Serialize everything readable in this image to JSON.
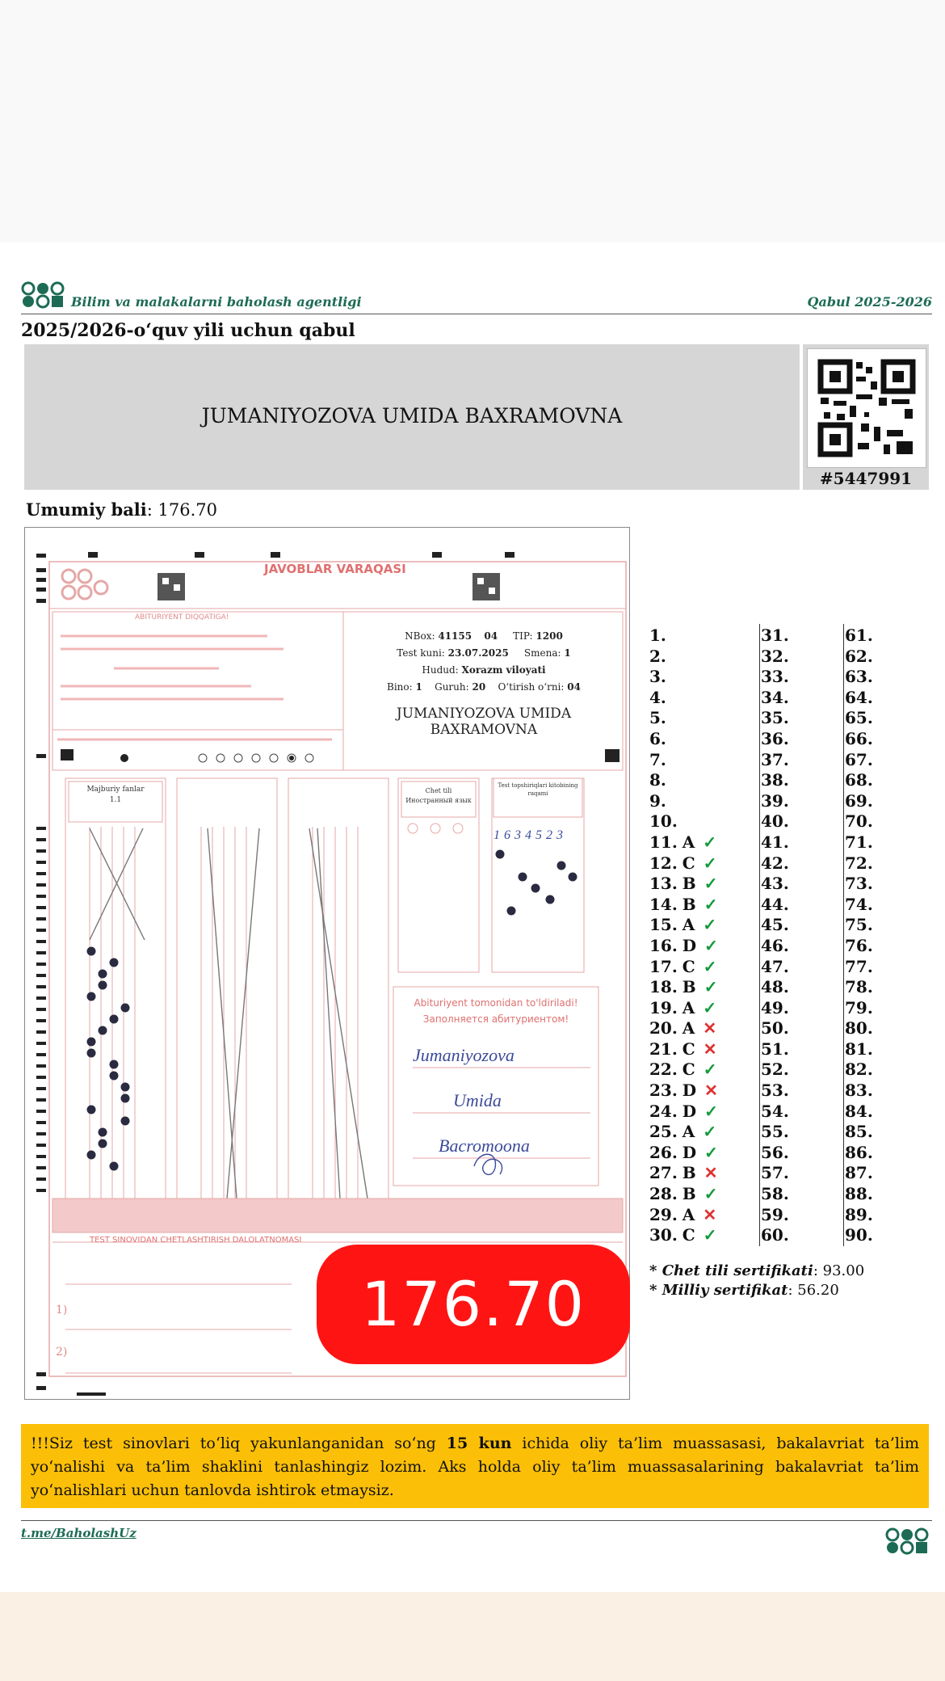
{
  "header": {
    "agency": "Bilim va malakalarni baholash agentligi",
    "campaign": "Qabul 2025-2026",
    "admission_year": "2025/2026-o‘quv yili uchun qabul"
  },
  "candidate": {
    "full_name": "JUMANIYOZOVA UMIDA BAXRAMOVNA",
    "id": "#5447991",
    "total_label": "Umumiy bali",
    "total": ": 176.70"
  },
  "sheet": {
    "title": "JAVOBLAR VARAQASI",
    "nbox_label": "NBox:",
    "nbox": "41155",
    "nbox_sub": "04",
    "tip_label": "TIP:",
    "tip": "1200",
    "test_day_label": "Test kuni:",
    "test_day": "23.07.2025",
    "shift_label": "Smena:",
    "shift": "1",
    "region_label": "Hudud:",
    "region": "Xorazm viloyati",
    "building_label": "Bino:",
    "building": "1",
    "group_label": "Guruh:",
    "group": "20",
    "seat_label": "O‘tirish o‘rni:",
    "seat": "04",
    "name_line1": "JUMANIYOZOVA UMIDA",
    "name_line2": "BAXRAMOVNA",
    "subject_label": "Majburiy fanlar",
    "subject_sub": "1.1",
    "foreign_label": "Chet tili",
    "foreign_sub": "Иностранный язык",
    "booklet_label": "Test topshiriqlari kitobining raqami",
    "booklet_digits": "1634523",
    "fill_title": "Abituriyent tomonidan to'ldiriladi!",
    "fill_title_ru": "Заполняется абитуриентом!",
    "sig_surname": "Jumaniyozova",
    "sig_name": "Umida",
    "sig_patronymic": "Bacromoona",
    "removal_title": "TEST SINOVIDAN CHETLASHTIRISH DALOLATNOMASI",
    "attention": "ABITURIYENT DIQQATIGA!"
  },
  "score_badge": "176.70",
  "answers": {
    "col1": [
      {
        "n": "1.",
        "a": "",
        "m": ""
      },
      {
        "n": "2.",
        "a": "",
        "m": ""
      },
      {
        "n": "3.",
        "a": "",
        "m": ""
      },
      {
        "n": "4.",
        "a": "",
        "m": ""
      },
      {
        "n": "5.",
        "a": "",
        "m": ""
      },
      {
        "n": "6.",
        "a": "",
        "m": ""
      },
      {
        "n": "7.",
        "a": "",
        "m": ""
      },
      {
        "n": "8.",
        "a": "",
        "m": ""
      },
      {
        "n": "9.",
        "a": "",
        "m": ""
      },
      {
        "n": "10.",
        "a": "",
        "m": ""
      },
      {
        "n": "11.",
        "a": "A",
        "m": "✓"
      },
      {
        "n": "12.",
        "a": "C",
        "m": "✓"
      },
      {
        "n": "13.",
        "a": "B",
        "m": "✓"
      },
      {
        "n": "14.",
        "a": "B",
        "m": "✓"
      },
      {
        "n": "15.",
        "a": "A",
        "m": "✓"
      },
      {
        "n": "16.",
        "a": "D",
        "m": "✓"
      },
      {
        "n": "17.",
        "a": "C",
        "m": "✓"
      },
      {
        "n": "18.",
        "a": "B",
        "m": "✓"
      },
      {
        "n": "19.",
        "a": "A",
        "m": "✓"
      },
      {
        "n": "20.",
        "a": "A",
        "m": "✕"
      },
      {
        "n": "21.",
        "a": "C",
        "m": "✕"
      },
      {
        "n": "22.",
        "a": "C",
        "m": "✓"
      },
      {
        "n": "23.",
        "a": "D",
        "m": "✕"
      },
      {
        "n": "24.",
        "a": "D",
        "m": "✓"
      },
      {
        "n": "25.",
        "a": "A",
        "m": "✓"
      },
      {
        "n": "26.",
        "a": "D",
        "m": "✓"
      },
      {
        "n": "27.",
        "a": "B",
        "m": "✕"
      },
      {
        "n": "28.",
        "a": "B",
        "m": "✓"
      },
      {
        "n": "29.",
        "a": "A",
        "m": "✕"
      },
      {
        "n": "30.",
        "a": "C",
        "m": "✓"
      }
    ],
    "col2": [
      "31.",
      "32.",
      "33.",
      "34.",
      "35.",
      "36.",
      "37.",
      "38.",
      "39.",
      "40.",
      "41.",
      "42.",
      "43.",
      "44.",
      "45.",
      "46.",
      "47.",
      "48.",
      "49.",
      "50.",
      "51.",
      "52.",
      "53.",
      "54.",
      "55.",
      "56.",
      "57.",
      "58.",
      "59.",
      "60."
    ],
    "col3": [
      "61.",
      "62.",
      "63.",
      "64.",
      "65.",
      "66.",
      "67.",
      "68.",
      "69.",
      "70.",
      "71.",
      "72.",
      "73.",
      "74.",
      "75.",
      "76.",
      "77.",
      "78.",
      "79.",
      "80.",
      "81.",
      "82.",
      "83.",
      "84.",
      "85.",
      "86.",
      "87.",
      "88.",
      "89.",
      "90."
    ]
  },
  "certificates": {
    "foreign_label": "Chet tili sertifikati",
    "foreign_value": ": 93.00",
    "national_label": "Milliy sertifikat",
    "national_value": ": 56.20"
  },
  "notice": {
    "before": "!!!Siz test sinovlari to‘liq yakunlanganidan so‘ng ",
    "bold": "15 kun",
    "after": " ichida oliy ta’lim muassasasi, bakalavriat ta’lim yo‘nalishi va ta’lim shaklini tanlashingiz lozim. Aks holda oliy ta’lim muassasalarining bakalavriat ta’lim yo‘nalishlari uchun tanlovda ishtirok etmaysiz."
  },
  "footer": {
    "link": "t.me/BaholashUz"
  },
  "colors": {
    "brand_green": "#1d6b55",
    "notice_bg": "#fbbf07",
    "badge_red": "#ff1414",
    "ok_green": "#139a3a",
    "wrong_red": "#e03030",
    "sheet_pink": "#e6a7a7"
  }
}
